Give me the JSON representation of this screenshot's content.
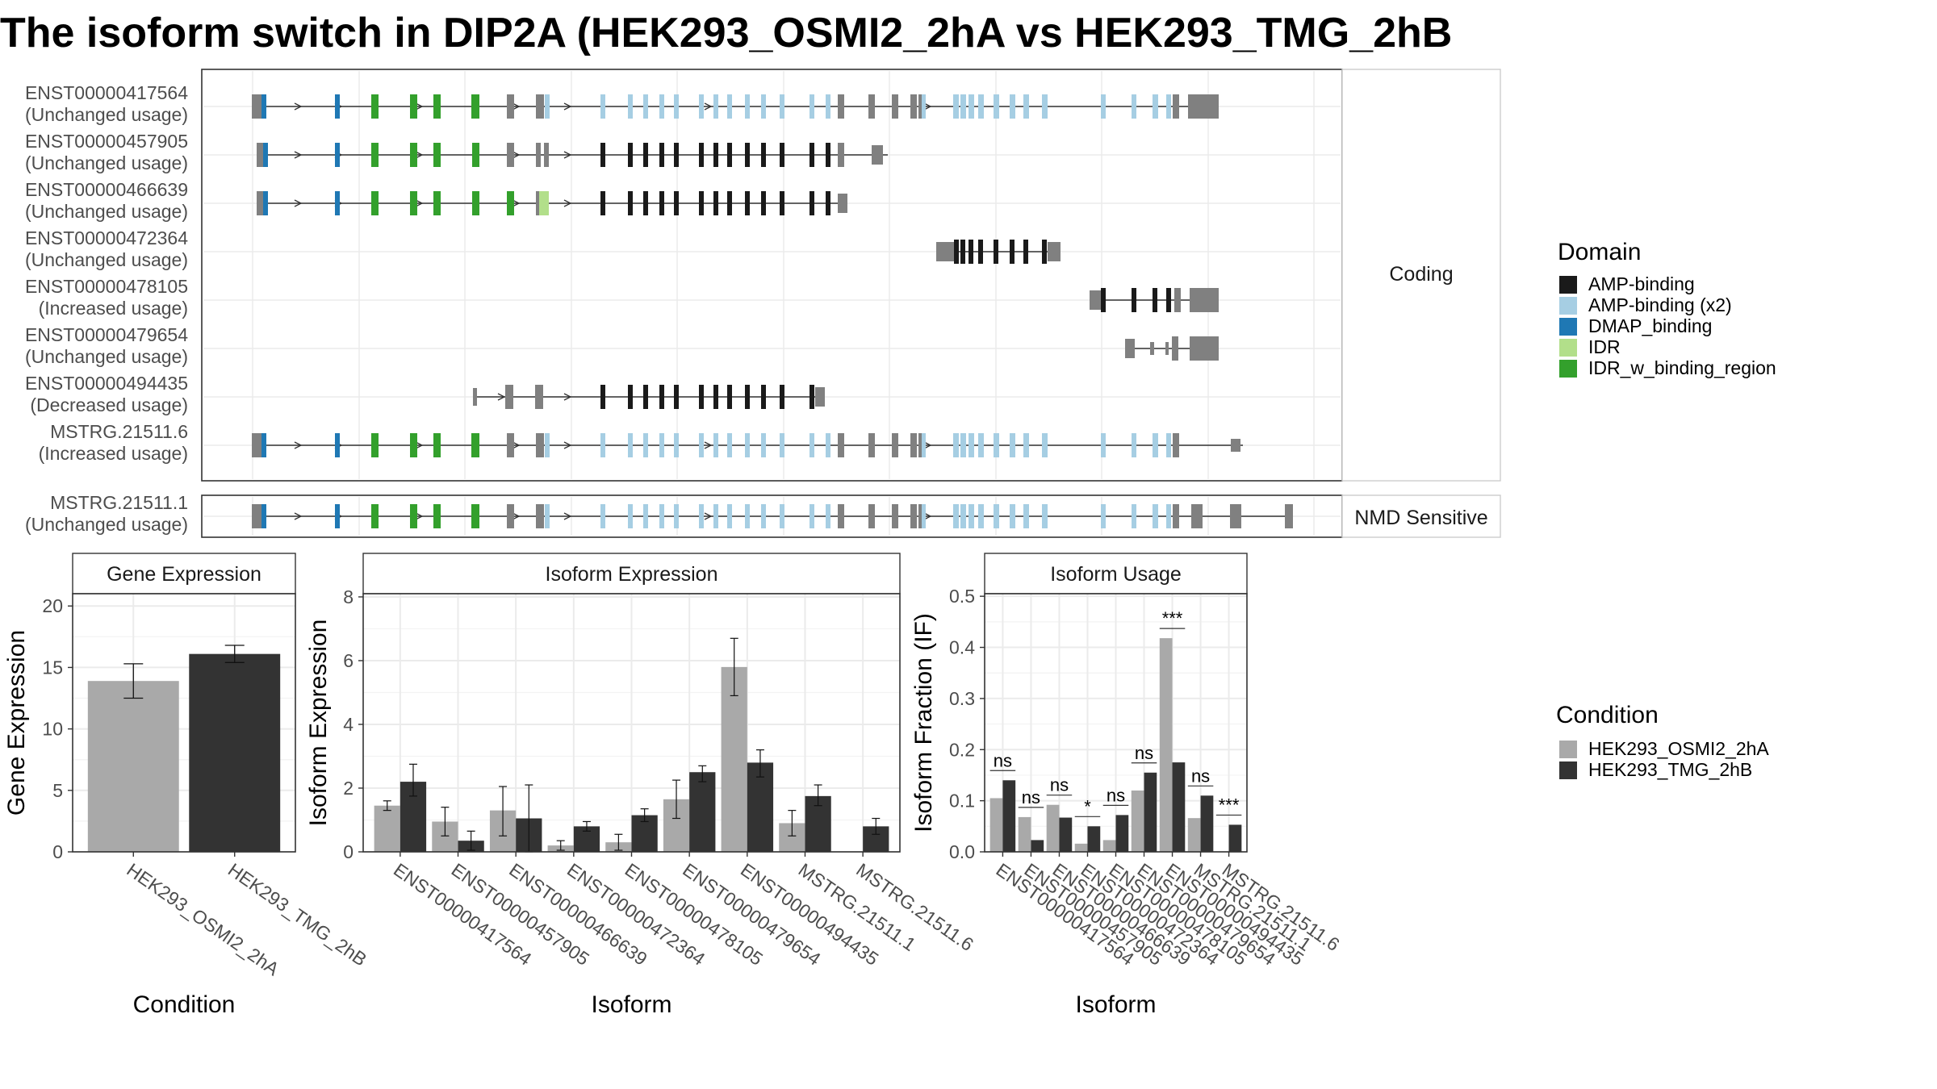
{
  "title": "The isoform switch in DIP2A (HEK293_OSMI2_2hA vs HEK293_TMG_2hB",
  "colors": {
    "domains": {
      "AMP-binding": "#1a1a1a",
      "AMP-binding (x2)": "#a6cee3",
      "DMAP_binding": "#1f78b4",
      "IDR": "#b2df8a",
      "IDR_w_binding_region": "#33a02c"
    },
    "utr": "#808080",
    "condA": "#a9a9a9",
    "condB": "#333333"
  },
  "structure": {
    "panels": [
      "Coding",
      "NMD Sensitive"
    ],
    "legend_title": "Domain",
    "legend_items": [
      "AMP-binding",
      "AMP-binding (x2)",
      "DMAP_binding",
      "IDR",
      "IDR_w_binding_region"
    ],
    "transcripts": [
      {
        "id": "ENST00000417564",
        "usage": "(Unchanged usage)",
        "panel": "Coding"
      },
      {
        "id": "ENST00000457905",
        "usage": "(Unchanged usage)",
        "panel": "Coding"
      },
      {
        "id": "ENST00000466639",
        "usage": "(Unchanged usage)",
        "panel": "Coding"
      },
      {
        "id": "ENST00000472364",
        "usage": "(Unchanged usage)",
        "panel": "Coding"
      },
      {
        "id": "ENST00000478105",
        "usage": "(Increased usage)",
        "panel": "Coding"
      },
      {
        "id": "ENST00000479654",
        "usage": "(Unchanged usage)",
        "panel": "Coding"
      },
      {
        "id": "ENST00000494435",
        "usage": "(Decreased usage)",
        "panel": "Coding"
      },
      {
        "id": "MSTRG.21511.6",
        "usage": "(Increased usage)",
        "panel": "Coding"
      },
      {
        "id": "MSTRG.21511.1",
        "usage": "(Unchanged usage)",
        "panel": "NMD Sensitive"
      }
    ]
  },
  "condition_legend": {
    "title": "Condition",
    "items": [
      "HEK293_OSMI2_2hA",
      "HEK293_TMG_2hB"
    ]
  },
  "chart_data": [
    {
      "type": "bar",
      "title": "Gene Expression",
      "xlabel": "Condition",
      "ylabel": "Gene Expression",
      "ylim": [
        0,
        21
      ],
      "yticks": [
        0,
        5,
        10,
        15,
        20
      ],
      "categories": [
        "HEK293_OSMI2_2hA",
        "HEK293_TMG_2hB"
      ],
      "values": [
        13.9,
        16.1
      ],
      "errors": [
        [
          12.5,
          15.3
        ],
        [
          15.4,
          16.8
        ]
      ]
    },
    {
      "type": "bar",
      "title": "Isoform Expression",
      "xlabel": "Isoform",
      "ylabel": "Isoform Expression",
      "ylim": [
        0,
        8.1
      ],
      "yticks": [
        0,
        2,
        4,
        6,
        8
      ],
      "categories": [
        "ENST00000417564",
        "ENST00000457905",
        "ENST00000466639",
        "ENST00000472364",
        "ENST00000478105",
        "ENST00000479654",
        "ENST00000494435",
        "MSTRG.21511.1",
        "MSTRG.21511.6"
      ],
      "series": [
        {
          "name": "HEK293_OSMI2_2hA",
          "values": [
            1.45,
            0.95,
            1.3,
            0.2,
            0.3,
            1.65,
            5.8,
            0.9,
            0.0
          ],
          "errors": [
            [
              1.3,
              1.6
            ],
            [
              0.5,
              1.4
            ],
            [
              0.5,
              2.05
            ],
            [
              0.05,
              0.35
            ],
            [
              0.05,
              0.55
            ],
            [
              1.05,
              2.25
            ],
            [
              4.9,
              6.7
            ],
            [
              0.5,
              1.3
            ],
            [
              0.0,
              0.0
            ]
          ]
        },
        {
          "name": "HEK293_TMG_2hB",
          "values": [
            2.2,
            0.35,
            1.05,
            0.8,
            1.15,
            2.5,
            2.8,
            1.75,
            0.8
          ]
        }
      ]
    },
    {
      "type": "bar",
      "title": "Isoform Usage",
      "xlabel": "Isoform",
      "ylabel": "Isoform Fraction (IF)",
      "ylim": [
        0,
        0.505
      ],
      "yticks": [
        0.0,
        0.1,
        0.2,
        0.3,
        0.4,
        0.5
      ],
      "categories": [
        "ENST00000417564",
        "ENST00000457905",
        "ENST00000466639",
        "ENST00000472364",
        "ENST00000478105",
        "ENST00000479654",
        "ENST00000494435",
        "MSTRG.21511.1",
        "MSTRG.21511.6"
      ],
      "series": [
        {
          "name": "HEK293_OSMI2_2hA",
          "values": [
            0.105,
            0.068,
            0.092,
            0.016,
            0.023,
            0.12,
            0.418,
            0.066,
            0.0
          ]
        },
        {
          "name": "HEK293_TMG_2hB",
          "values": [
            0.14,
            0.023,
            0.067,
            0.05,
            0.072,
            0.155,
            0.175,
            0.11,
            0.053
          ]
        }
      ],
      "significance": [
        "ns",
        "ns",
        "ns",
        "*",
        "ns",
        "ns",
        "***",
        "ns",
        "***"
      ]
    }
  ]
}
